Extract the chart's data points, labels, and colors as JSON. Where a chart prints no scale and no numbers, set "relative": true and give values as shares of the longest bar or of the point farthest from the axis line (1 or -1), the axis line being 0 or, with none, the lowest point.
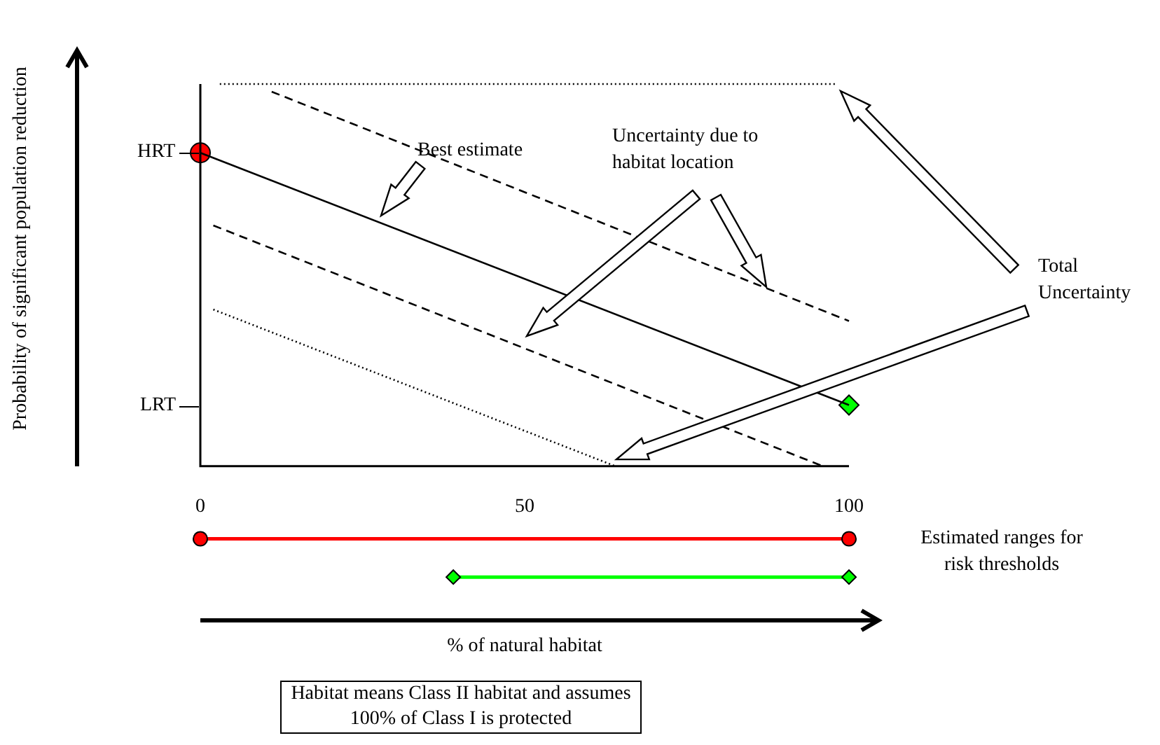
{
  "chart_data": {
    "type": "line",
    "relative": true,
    "xlabel": "% of natural habitat",
    "xlim": [
      0,
      100
    ],
    "xticks": [
      0,
      50,
      100
    ],
    "legend": false,
    "series": [
      {
        "color": "#000000",
        "line_style": "solid",
        "marker": "none",
        "x": [
          0,
          100
        ],
        "values": [
          0.82,
          0.16
        ]
      },
      {
        "color": "#000000",
        "line_style": "dashed",
        "marker": "none",
        "x": [
          11,
          100
        ],
        "values": [
          0.98,
          0.38
        ]
      },
      {
        "color": "#000000",
        "line_style": "dashed",
        "marker": "none",
        "x": [
          2,
          96
        ],
        "values": [
          0.63,
          0
        ]
      },
      {
        "color": "#000000",
        "line_style": "dotted",
        "marker": "none",
        "x": [
          3,
          98
        ],
        "values": [
          1,
          1
        ]
      },
      {
        "color": "#000000",
        "line_style": "dotted",
        "marker": "none",
        "x": [
          2,
          64
        ],
        "values": [
          0.41,
          0
        ]
      },
      {
        "type": "scatter",
        "color": "#ff0000",
        "marker": "circle",
        "x": [
          0
        ],
        "values": [
          0.82
        ]
      },
      {
        "type": "scatter",
        "color": "#00ff00",
        "marker": "diamond",
        "x": [
          100
        ],
        "values": [
          0.16
        ]
      },
      {
        "color": "#ff0000",
        "line_style": "solid",
        "marker": "circle",
        "x": [
          0,
          100
        ],
        "values": [
          -0.19,
          -0.19
        ]
      },
      {
        "color": "#00ff00",
        "line_style": "solid",
        "marker": "diamond",
        "x": [
          39,
          100
        ],
        "values": [
          -0.29,
          -0.29
        ]
      }
    ],
    "annotations": [
      "Probability of significant population reduction",
      "HRT",
      "LRT",
      "Best estimate",
      "Uncertainty due to habitat location",
      "Total Uncertainty",
      "Estimated ranges for risk thresholds",
      "Habitat means Class II habitat and assumes 100% of Class I is protected"
    ]
  }
}
